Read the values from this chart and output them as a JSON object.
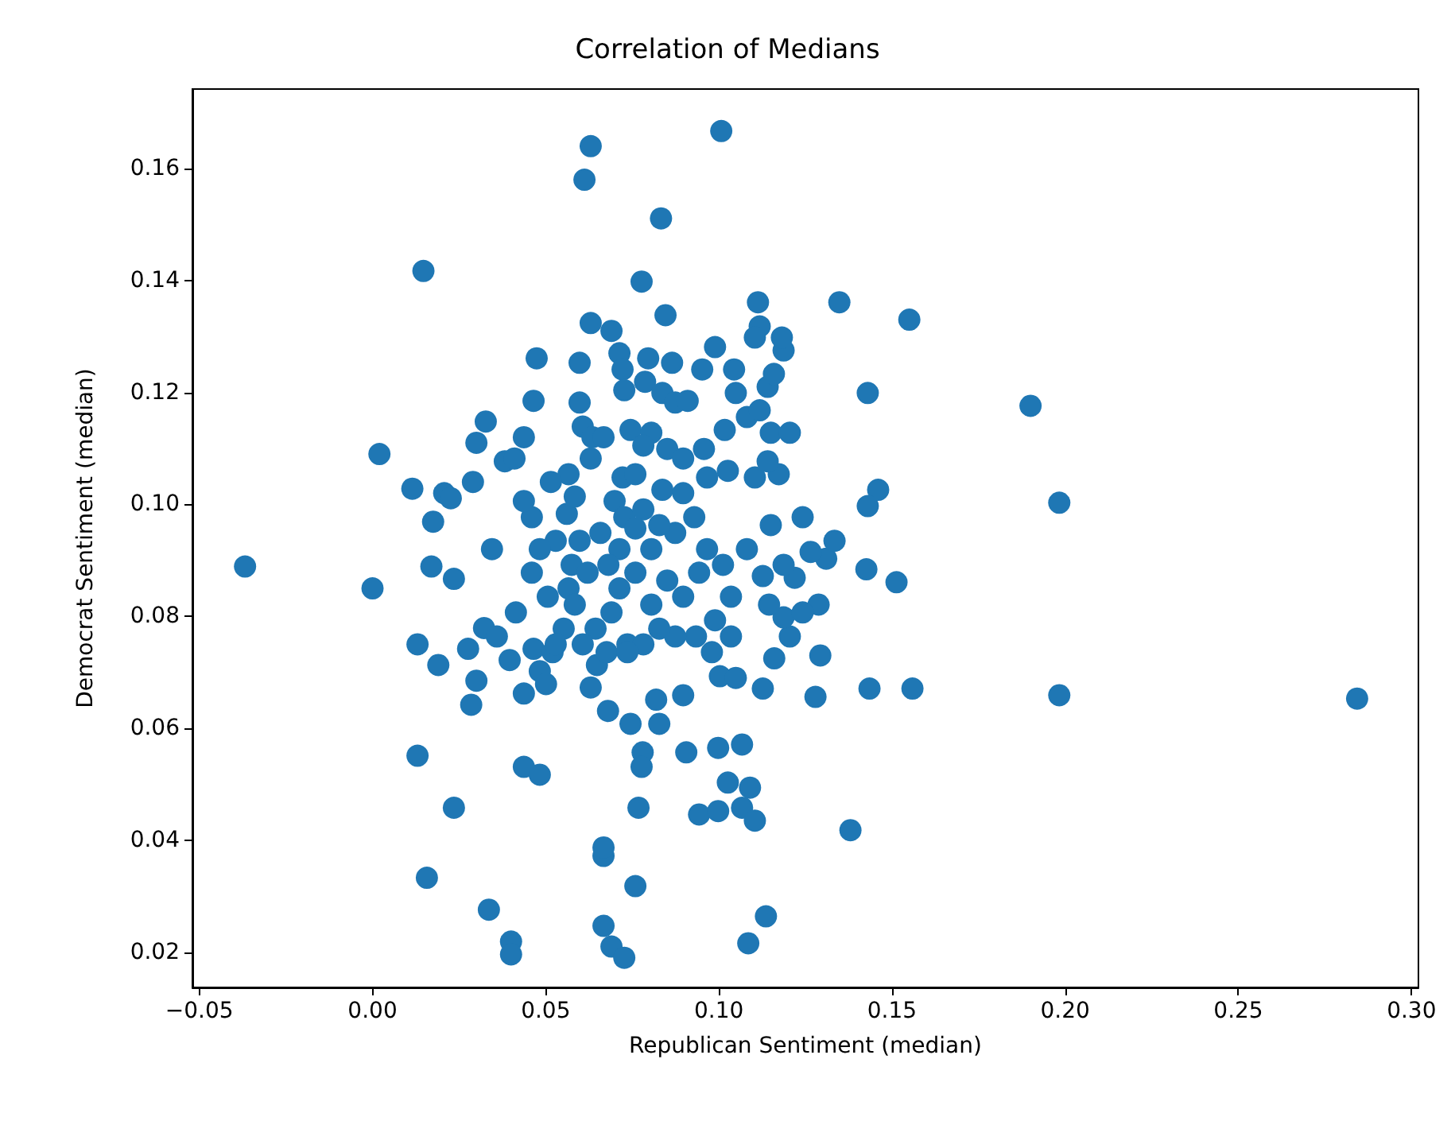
{
  "chart_data": {
    "type": "scatter",
    "title": "Correlation of Medians",
    "xlabel": "Republican Sentiment (median)",
    "ylabel": "Democrat Sentiment (median)",
    "marker": "circle",
    "grid": false,
    "xlim": [
      -0.052,
      0.302
    ],
    "ylim": [
      0.0137,
      0.1742
    ],
    "xticks": [
      {
        "value": -0.05,
        "label": "−0.05"
      },
      {
        "value": 0,
        "label": "0.00"
      },
      {
        "value": 0.05,
        "label": "0.05"
      },
      {
        "value": 0.1,
        "label": "0.10"
      },
      {
        "value": 0.15,
        "label": "0.15"
      },
      {
        "value": 0.2,
        "label": "0.20"
      },
      {
        "value": 0.25,
        "label": "0.25"
      },
      {
        "value": 0.3,
        "label": "0.30"
      }
    ],
    "yticks": [
      {
        "value": 0.02,
        "label": "0.02"
      },
      {
        "value": 0.04,
        "label": "0.04"
      },
      {
        "value": 0.06,
        "label": "0.06"
      },
      {
        "value": 0.08,
        "label": "0.08"
      },
      {
        "value": 0.1,
        "label": "0.10"
      },
      {
        "value": 0.12,
        "label": "0.12"
      },
      {
        "value": 0.14,
        "label": "0.14"
      },
      {
        "value": 0.16,
        "label": "0.16"
      }
    ],
    "series": [
      {
        "color": "#1f77b4",
        "x": [
          -0.0368,
          0.0,
          0.002,
          0.0147,
          0.0115,
          0.0175,
          0.017,
          0.0207,
          0.0235,
          0.0226,
          0.013,
          0.019,
          0.03,
          0.0327,
          0.029,
          0.0276,
          0.0285,
          0.03,
          0.0345,
          0.0322,
          0.0359,
          0.0382,
          0.041,
          0.0437,
          0.0465,
          0.0474,
          0.0414,
          0.0396,
          0.0437,
          0.0465,
          0.0483,
          0.0501,
          0.052,
          0.0437,
          0.0483,
          0.013,
          0.0235,
          0.0157,
          0.0336,
          0.04,
          0.04,
          0.0612,
          0.063,
          0.1007,
          0.0833,
          0.0777,
          0.0846,
          0.063,
          0.069,
          0.1113,
          0.1348,
          0.155,
          0.143,
          0.19,
          0.1983,
          0.1983,
          0.2843,
          0.1559,
          0.1435,
          0.138,
          0.1513,
          0.146,
          0.143,
          0.1426,
          0.131,
          0.1334,
          0.1265,
          0.1288,
          0.1279,
          0.1136,
          0.1085,
          0.0667,
          0.0667,
          0.069,
          0.0727,
          0.0759,
          0.0667,
          0.0768,
          0.068,
          0.0745,
          0.0828,
          0.078,
          0.0777,
          0.0906,
          0.0998,
          0.1067,
          0.1026,
          0.109,
          0.0943,
          0.0998,
          0.1067,
          0.1104,
          0.0897,
          0.0819,
          0.063,
          0.0648,
          0.0736,
          0.0676,
          0.1003,
          0.1049,
          0.1127,
          0.116,
          0.1205,
          0.1293,
          0.1187,
          0.1242,
          0.1145,
          0.1219,
          0.1187,
          0.1127,
          0.1081,
          0.115,
          0.1242,
          0.1173,
          0.1104,
          0.1141,
          0.115,
          0.1205,
          0.1017,
          0.1141,
          0.1159,
          0.1187,
          0.1182,
          0.1118,
          0.1104,
          0.1044,
          0.0989,
          0.0952,
          0.1049,
          0.1081,
          0.1118,
          0.0865,
          0.0796,
          0.0713,
          0.0722,
          0.0727,
          0.0787,
          0.0837,
          0.0874,
          0.091,
          0.0598,
          0.0598,
          0.0607,
          0.0635,
          0.063,
          0.0667,
          0.0745,
          0.0805,
          0.0782,
          0.0851,
          0.0897,
          0.0957,
          0.1026,
          0.0566,
          0.0515,
          0.0561,
          0.0584,
          0.0598,
          0.0575,
          0.0566,
          0.0584,
          0.0621,
          0.0658,
          0.0699,
          0.0722,
          0.0759,
          0.0727,
          0.0782,
          0.0837,
          0.0897,
          0.0966,
          0.0929,
          0.0874,
          0.0805,
          0.0759,
          0.0713,
          0.069,
          0.0644,
          0.0607,
          0.0805,
          0.0851,
          0.0897,
          0.0943,
          0.0966,
          0.1012,
          0.1035,
          0.0989,
          0.0934,
          0.0874,
          0.0828,
          0.0782,
          0.098,
          0.1035,
          0.0529,
          0.0483,
          0.046,
          0.0506,
          0.0552,
          0.0529,
          0.046,
          0.0437,
          0.0713,
          0.0759,
          0.0828,
          0.0681,
          0.0736
        ],
        "values": [
          0.0889,
          0.085,
          0.109,
          0.1417,
          0.1028,
          0.0969,
          0.0889,
          0.102,
          0.0867,
          0.1011,
          0.075,
          0.0713,
          0.111,
          0.1148,
          0.104,
          0.0742,
          0.0642,
          0.0685,
          0.092,
          0.0779,
          0.0764,
          0.1077,
          0.1082,
          0.112,
          0.1185,
          0.1261,
          0.0807,
          0.0722,
          0.0662,
          0.0742,
          0.0702,
          0.0679,
          0.0736,
          0.0531,
          0.0517,
          0.0551,
          0.0458,
          0.0333,
          0.0276,
          0.0219,
          0.0196,
          0.158,
          0.164,
          0.1667,
          0.1511,
          0.1398,
          0.1338,
          0.1324,
          0.131,
          0.1361,
          0.1361,
          0.133,
          0.1199,
          0.1176,
          0.1003,
          0.0659,
          0.0653,
          0.0671,
          0.0671,
          0.0418,
          0.0861,
          0.1026,
          0.0997,
          0.0884,
          0.0903,
          0.0935,
          0.0915,
          0.0821,
          0.0656,
          0.0264,
          0.0216,
          0.0372,
          0.0247,
          0.021,
          0.019,
          0.0318,
          0.0387,
          0.0458,
          0.0631,
          0.0608,
          0.0608,
          0.0557,
          0.0531,
          0.0557,
          0.0565,
          0.0571,
          0.0503,
          0.0494,
          0.0446,
          0.0452,
          0.0458,
          0.0435,
          0.0659,
          0.0651,
          0.0673,
          0.0713,
          0.075,
          0.0736,
          0.0693,
          0.069,
          0.0671,
          0.0725,
          0.0764,
          0.073,
          0.0798,
          0.0807,
          0.0821,
          0.0869,
          0.0892,
          0.0872,
          0.092,
          0.0963,
          0.0977,
          0.1054,
          0.1048,
          0.1077,
          0.1128,
          0.1128,
          0.1133,
          0.121,
          0.1233,
          0.1275,
          0.1298,
          0.1318,
          0.1298,
          0.1241,
          0.1281,
          0.1241,
          0.1199,
          0.1156,
          0.1168,
          0.1253,
          0.1261,
          0.127,
          0.1241,
          0.1204,
          0.1219,
          0.1199,
          0.1182,
          0.1185,
          0.1253,
          0.1182,
          0.1139,
          0.112,
          0.1082,
          0.112,
          0.1133,
          0.1128,
          0.1105,
          0.1099,
          0.1082,
          0.1099,
          0.106,
          0.1054,
          0.104,
          0.0983,
          0.1014,
          0.0935,
          0.0892,
          0.085,
          0.0821,
          0.0878,
          0.0949,
          0.1006,
          0.1048,
          0.1054,
          0.0977,
          0.0991,
          0.1026,
          0.102,
          0.1048,
          0.0977,
          0.0949,
          0.092,
          0.0878,
          0.085,
          0.0807,
          0.0778,
          0.075,
          0.0821,
          0.0864,
          0.0835,
          0.0878,
          0.092,
          0.0892,
          0.0835,
          0.0793,
          0.0764,
          0.0764,
          0.0778,
          0.075,
          0.0736,
          0.0764,
          0.0935,
          0.092,
          0.0878,
          0.0835,
          0.0778,
          0.075,
          0.0977,
          0.1006,
          0.092,
          0.0957,
          0.0963,
          0.0892,
          0.0736
        ]
      }
    ]
  }
}
